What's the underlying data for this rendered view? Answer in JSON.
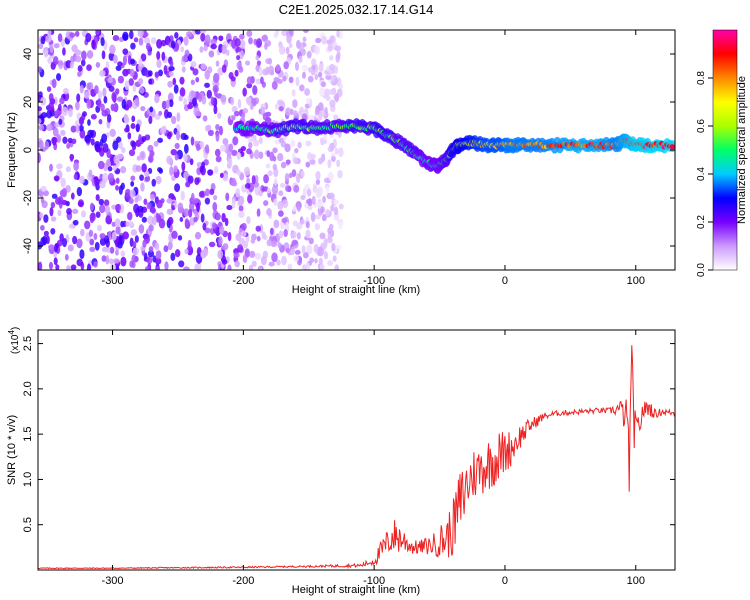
{
  "title": "C2E1.2025.032.17.14.G14",
  "chart_data": [
    {
      "type": "heatmap",
      "title": "C2E1.2025.032.17.14.G14",
      "xlabel": "Height of straight line (km)",
      "ylabel": "Frequency (Hz)",
      "xlim": [
        -357,
        130
      ],
      "ylim": [
        -50,
        50
      ],
      "x_ticks": [
        -300,
        -200,
        -100,
        0,
        100
      ],
      "y_ticks": [
        -40,
        -20,
        0,
        20,
        40
      ],
      "colorbar": {
        "label": "Normalized spectral amplitude",
        "range": [
          0,
          1
        ],
        "ticks": [
          "0.0",
          "0.2",
          "0.4",
          "0.6",
          "0.8"
        ],
        "colors": [
          "#ffffff",
          "#cc99ff",
          "#7700ff",
          "#0000ff",
          "#00ccff",
          "#00ff66",
          "#aaff00",
          "#ffff00",
          "#ff8800",
          "#ff0000",
          "#ff00aa"
        ]
      },
      "noise_region_x": [
        -357,
        -125
      ],
      "ridge": {
        "x": [
          -205,
          -190,
          -175,
          -160,
          -145,
          -130,
          -115,
          -100,
          -90,
          -80,
          -70,
          -60,
          -52,
          -45,
          -40,
          -35,
          -25,
          -15,
          -5,
          5,
          15,
          30,
          50,
          70,
          85,
          92,
          100,
          110,
          130
        ],
        "y": [
          9,
          9,
          8,
          10,
          9,
          10,
          10,
          9,
          6,
          3,
          -1,
          -5,
          -7,
          -4,
          0,
          2,
          3,
          2,
          2,
          2,
          2,
          2,
          2,
          2,
          2,
          4,
          2,
          2,
          2
        ],
        "amp": [
          0.45,
          0.45,
          0.5,
          0.55,
          0.5,
          0.5,
          0.55,
          0.55,
          0.55,
          0.5,
          0.5,
          0.45,
          0.45,
          0.5,
          0.6,
          0.65,
          0.7,
          0.75,
          0.75,
          0.8,
          0.8,
          0.8,
          0.85,
          0.85,
          0.8,
          0.85,
          0.9,
          0.9,
          0.9
        ]
      }
    },
    {
      "type": "line",
      "xlabel": "Height of straight line (km)",
      "ylabel": "SNR (10 * v/v)",
      "y_multiplier": "(x10",
      "y_multiplier_exp": "4",
      "y_multiplier_close": ")",
      "xlim": [
        -357,
        130
      ],
      "ylim": [
        0,
        2.65
      ],
      "x_ticks": [
        -300,
        -200,
        -100,
        0,
        100
      ],
      "y_ticks": [
        "0.5",
        "1.0",
        "1.5",
        "2.0",
        "2.5"
      ],
      "series": [
        {
          "color": "#ee2222",
          "x": [
            -357,
            -300,
            -200,
            -150,
            -110,
            -100,
            -95,
            -90,
            -85,
            -80,
            -75,
            -70,
            -65,
            -55,
            -45,
            -40,
            -35,
            -30,
            -25,
            -20,
            -15,
            -10,
            -5,
            0,
            5,
            10,
            20,
            30,
            40,
            50,
            60,
            70,
            80,
            88,
            92,
            95,
            97,
            100,
            105,
            110,
            115,
            120,
            130
          ],
          "y": [
            0.02,
            0.02,
            0.03,
            0.04,
            0.05,
            0.1,
            0.2,
            0.3,
            0.38,
            0.35,
            0.3,
            0.25,
            0.25,
            0.28,
            0.35,
            0.45,
            0.7,
            0.9,
            1.05,
            1.1,
            1.15,
            1.2,
            1.25,
            1.3,
            1.35,
            1.45,
            1.6,
            1.7,
            1.73,
            1.74,
            1.75,
            1.76,
            1.76,
            1.78,
            1.7,
            1.3,
            2.1,
            1.4,
            1.75,
            1.8,
            1.72,
            1.75,
            1.73
          ],
          "jitter": [
            0.005,
            0.005,
            0.008,
            0.01,
            0.02,
            0.05,
            0.12,
            0.15,
            0.2,
            0.18,
            0.12,
            0.08,
            0.08,
            0.12,
            0.25,
            0.3,
            0.4,
            0.35,
            0.3,
            0.3,
            0.3,
            0.3,
            0.3,
            0.25,
            0.2,
            0.15,
            0.08,
            0.04,
            0.03,
            0.03,
            0.03,
            0.03,
            0.03,
            0.1,
            0.2,
            0.6,
            0.4,
            0.3,
            0.1,
            0.1,
            0.05,
            0.04,
            0.03
          ]
        }
      ]
    }
  ]
}
